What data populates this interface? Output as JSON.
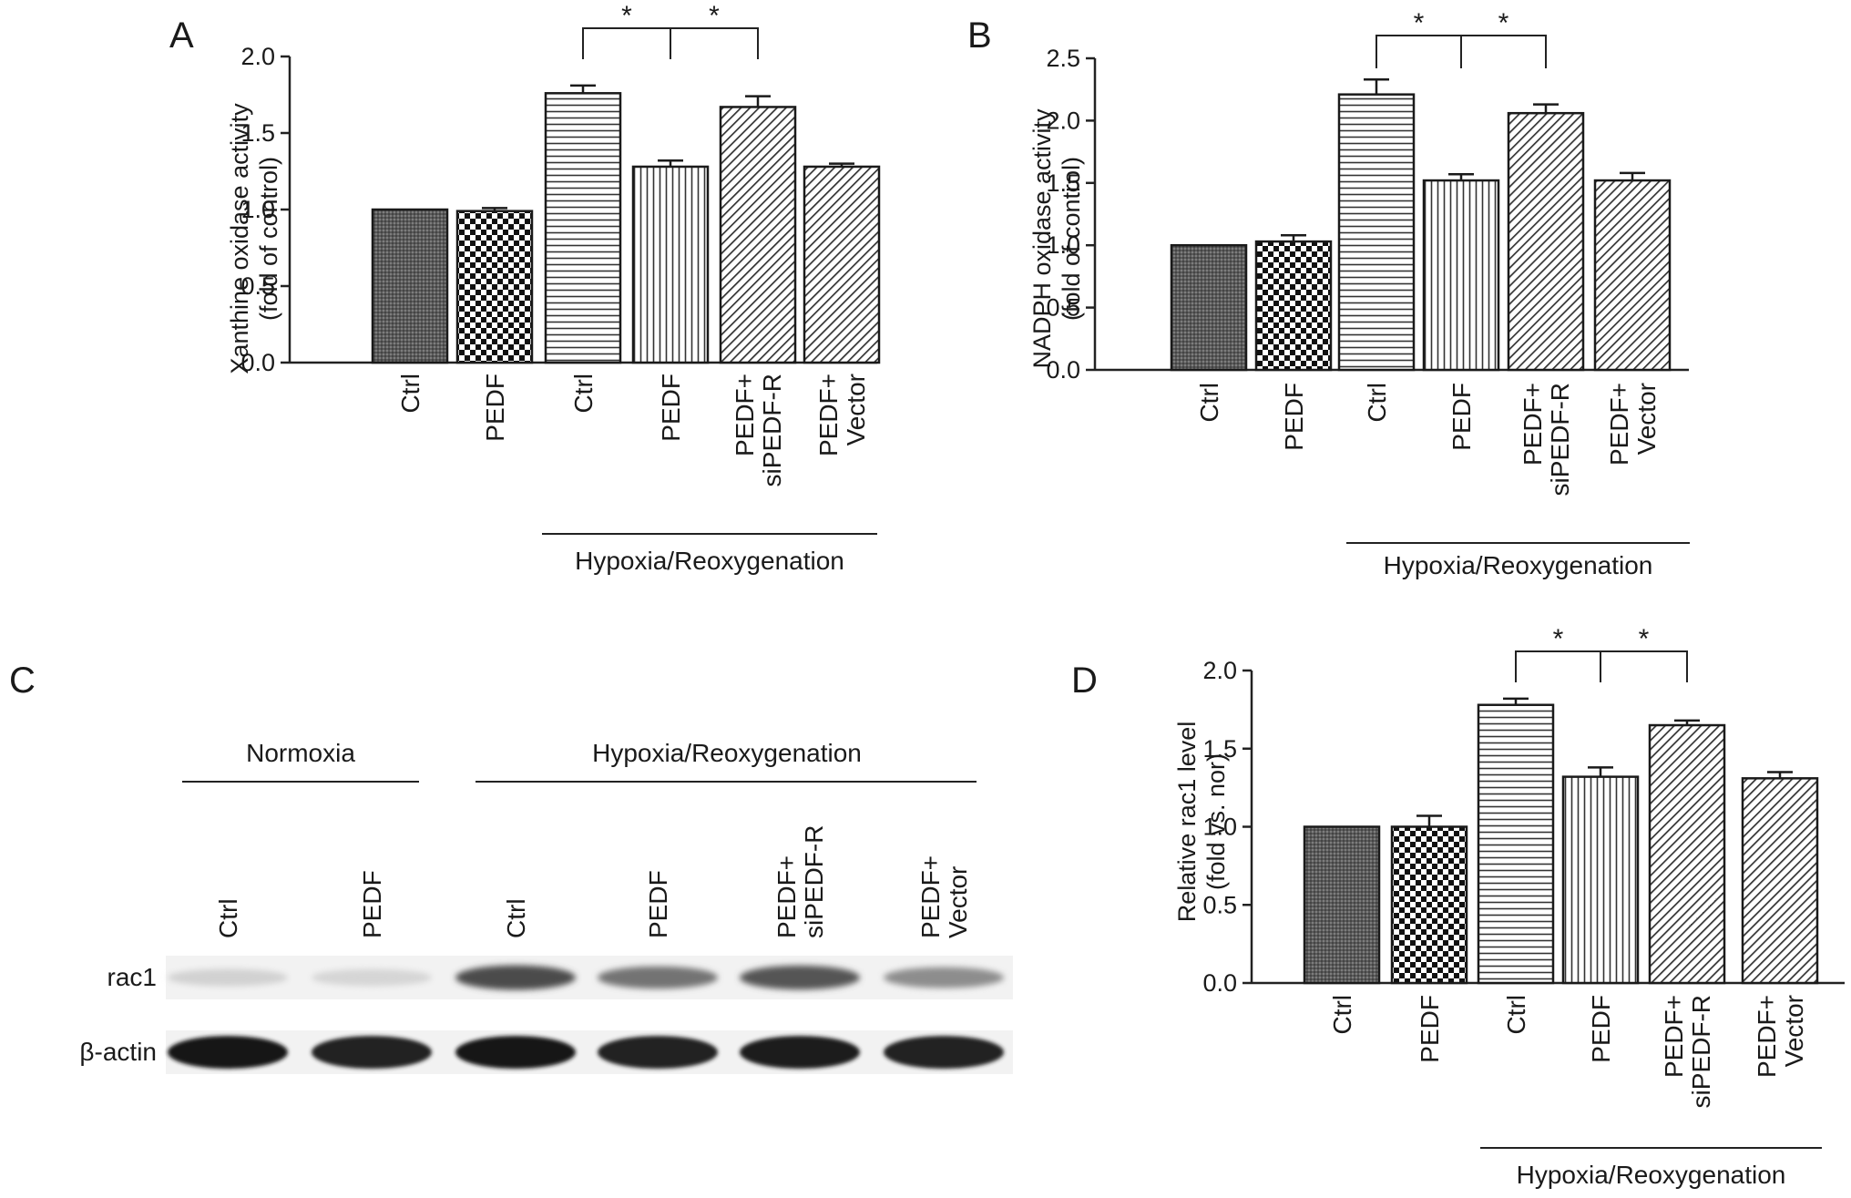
{
  "panels": {
    "A": "A",
    "B": "B",
    "C": "C",
    "D": "D"
  },
  "chart_data": [
    {
      "panel": "A",
      "type": "bar",
      "ylabel": [
        "Xanthine oxidase activity",
        "(fold of control)"
      ],
      "ylim": [
        0,
        2.0
      ],
      "yticks": [
        "0.0",
        "0.5",
        "1.0",
        "1.5",
        "2.0"
      ],
      "categories": [
        [
          "Ctrl"
        ],
        [
          "PEDF"
        ],
        [
          "Ctrl"
        ],
        [
          "PEDF"
        ],
        [
          "PEDF+",
          "siPEDF-R"
        ],
        [
          "PEDF+",
          "Vector"
        ]
      ],
      "values": [
        1.0,
        0.99,
        1.76,
        1.28,
        1.67,
        1.28
      ],
      "errors": [
        0,
        0.02,
        0.05,
        0.04,
        0.07,
        0.02
      ],
      "patterns": [
        "dark-mesh",
        "checker",
        "horizontal",
        "vertical",
        "diagonal",
        "diagonal"
      ],
      "group": "Hypoxia/Reoxygenation",
      "significance": [
        {
          "from": 2,
          "to": 3,
          "label": "*"
        },
        {
          "from": 3,
          "to": 4,
          "label": "*"
        }
      ]
    },
    {
      "panel": "B",
      "type": "bar",
      "ylabel": [
        "NADPH oxidase activity",
        "(fold of control)"
      ],
      "ylim": [
        0,
        2.5
      ],
      "yticks": [
        "0.0",
        "0.5",
        "1.0",
        "1.5",
        "2.0",
        "2.5"
      ],
      "categories": [
        [
          "Ctrl"
        ],
        [
          "PEDF"
        ],
        [
          "Ctrl"
        ],
        [
          "PEDF"
        ],
        [
          "PEDF+",
          "siPEDF-R"
        ],
        [
          "PEDF+",
          "Vector"
        ]
      ],
      "values": [
        1.0,
        1.03,
        2.21,
        1.52,
        2.06,
        1.52
      ],
      "errors": [
        0,
        0.05,
        0.12,
        0.05,
        0.07,
        0.06
      ],
      "patterns": [
        "dark-mesh",
        "checker",
        "horizontal",
        "vertical",
        "diagonal",
        "diagonal"
      ],
      "group": "Hypoxia/Reoxygenation",
      "significance": [
        {
          "from": 2,
          "to": 3,
          "label": "*"
        },
        {
          "from": 3,
          "to": 4,
          "label": "*"
        }
      ]
    },
    {
      "panel": "D",
      "type": "bar",
      "ylabel": [
        "Relative rac1 level",
        "(fold vs. nor)"
      ],
      "ylim": [
        0,
        2.0
      ],
      "yticks": [
        "0.0",
        "0.5",
        "1.0",
        "1.5",
        "2.0"
      ],
      "categories": [
        [
          "Ctrl"
        ],
        [
          "PEDF"
        ],
        [
          "Ctrl"
        ],
        [
          "PEDF"
        ],
        [
          "PEDF+",
          "siPEDF-R"
        ],
        [
          "PEDF+",
          "Vector"
        ]
      ],
      "values": [
        1.0,
        1.0,
        1.78,
        1.32,
        1.65,
        1.31
      ],
      "errors": [
        0,
        0.07,
        0.04,
        0.06,
        0.03,
        0.04
      ],
      "patterns": [
        "dark-mesh",
        "checker",
        "horizontal",
        "vertical",
        "diagonal",
        "diagonal"
      ],
      "group": "Hypoxia/Reoxygenation",
      "significance": [
        {
          "from": 2,
          "to": 3,
          "label": "*"
        },
        {
          "from": 3,
          "to": 4,
          "label": "*"
        }
      ]
    }
  ],
  "blot": {
    "panel": "C",
    "groups": [
      "Normoxia",
      "Hypoxia/Reoxygenation"
    ],
    "lanes": [
      [
        "Ctrl"
      ],
      [
        "PEDF"
      ],
      [
        "Ctrl"
      ],
      [
        "PEDF"
      ],
      [
        "PEDF+",
        "siPEDF-R"
      ],
      [
        "PEDF+",
        "Vector"
      ]
    ],
    "rows": [
      {
        "label": "rac1",
        "intensity": [
          0.08,
          0.06,
          0.75,
          0.55,
          0.7,
          0.42
        ]
      },
      {
        "label": "β-actin",
        "intensity": [
          1.0,
          0.95,
          1.0,
          0.95,
          0.98,
          0.96
        ]
      }
    ]
  }
}
